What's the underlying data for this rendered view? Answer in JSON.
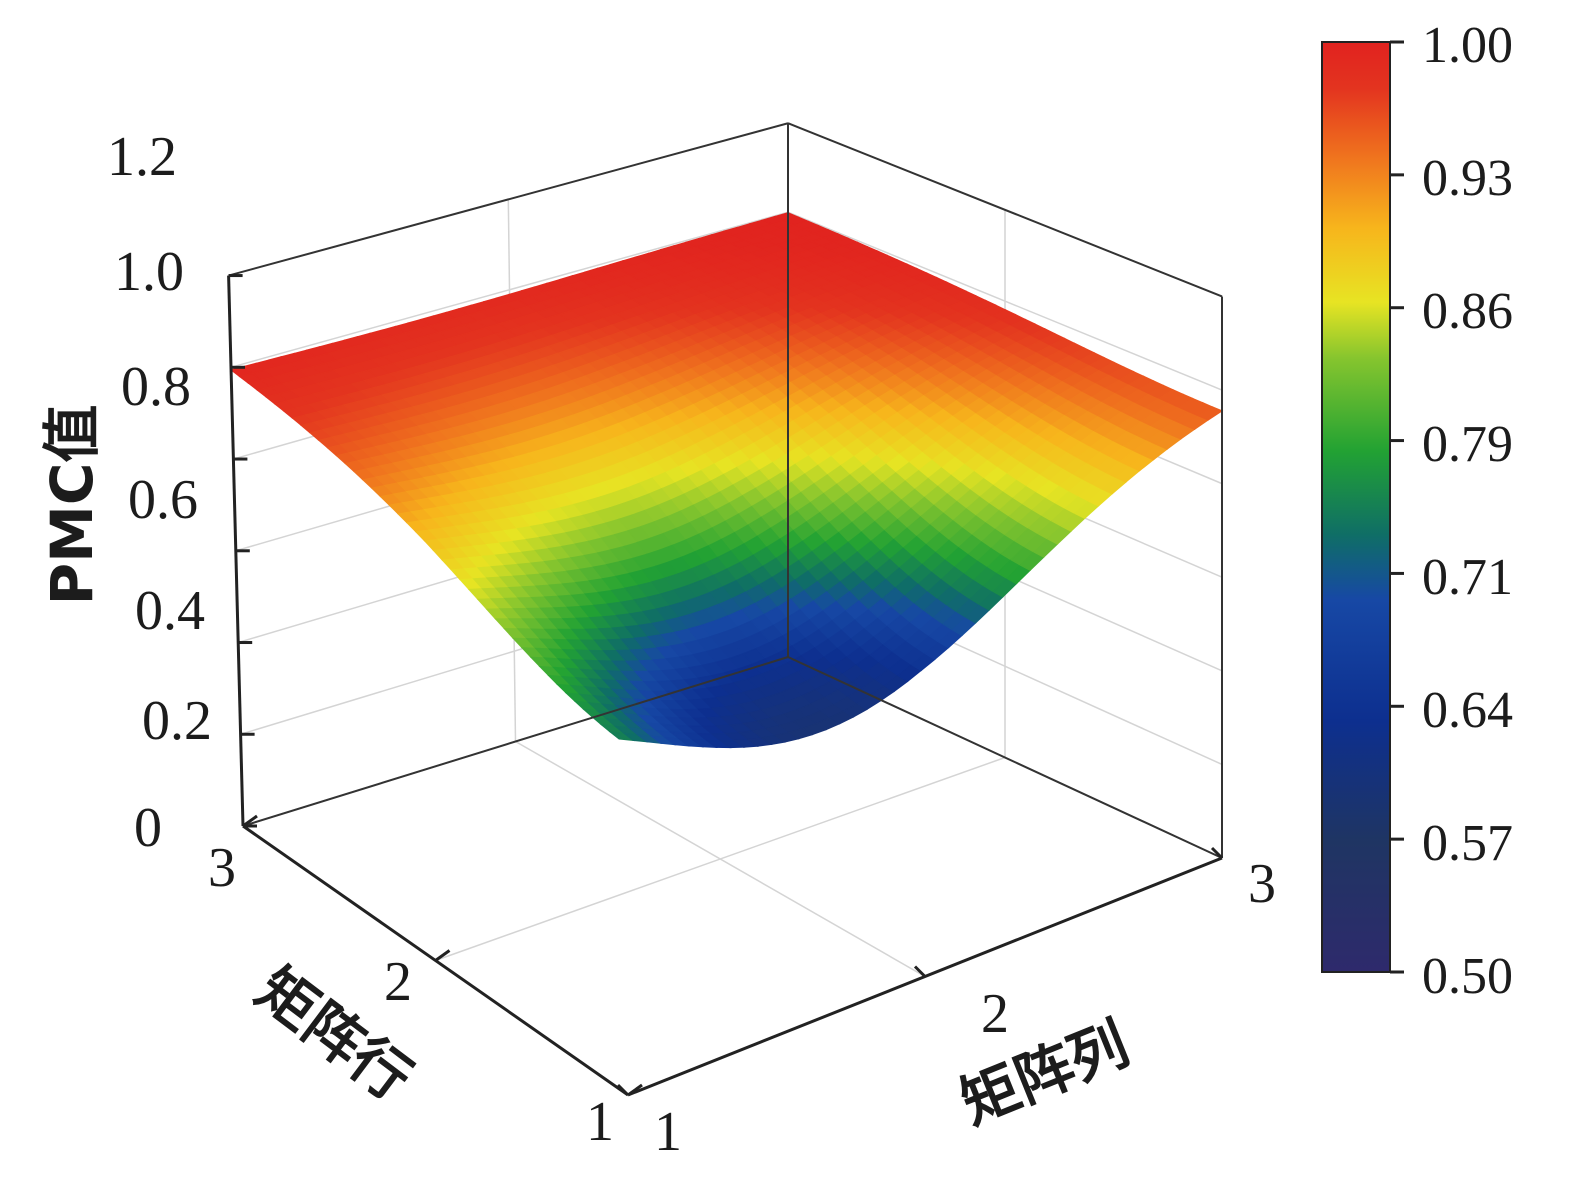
{
  "chart_data": {
    "type": "surface3d",
    "x_label": "矩阵列",
    "y_label": "矩阵行",
    "z_label": "PMC值",
    "x_ticks": [
      "1",
      "2",
      "3"
    ],
    "y_ticks": [
      "1",
      "2",
      "3"
    ],
    "z_ticks": [
      "0",
      "0.2",
      "0.4",
      "0.6",
      "0.8",
      "1.0",
      "1.2"
    ],
    "xlim": [
      1,
      3
    ],
    "ylim": [
      1,
      3
    ],
    "zlim": [
      0,
      1.2
    ],
    "grid": true,
    "colorbar": {
      "min": 0.5,
      "max": 1.0,
      "ticks": [
        "1.00",
        "0.93",
        "0.86",
        "0.79",
        "0.71",
        "0.64",
        "0.57",
        "0.50"
      ],
      "placement": "right",
      "colors": [
        "#2b2a6f",
        "#1f3d8c",
        "#0d4fa8",
        "#1b8f3a",
        "#3aae2a",
        "#9ccd2a",
        "#f2e21f",
        "#f5a81c",
        "#ee6a1d",
        "#e32b1e",
        "#e0221e"
      ]
    },
    "grid_x": [
      1,
      2,
      3
    ],
    "grid_y": [
      1,
      2,
      3
    ],
    "z_values": [
      [
        0.7,
        0.88,
        1.0
      ],
      [
        0.88,
        0.96,
        1.0
      ],
      [
        1.0,
        1.0,
        1.0
      ]
    ]
  }
}
